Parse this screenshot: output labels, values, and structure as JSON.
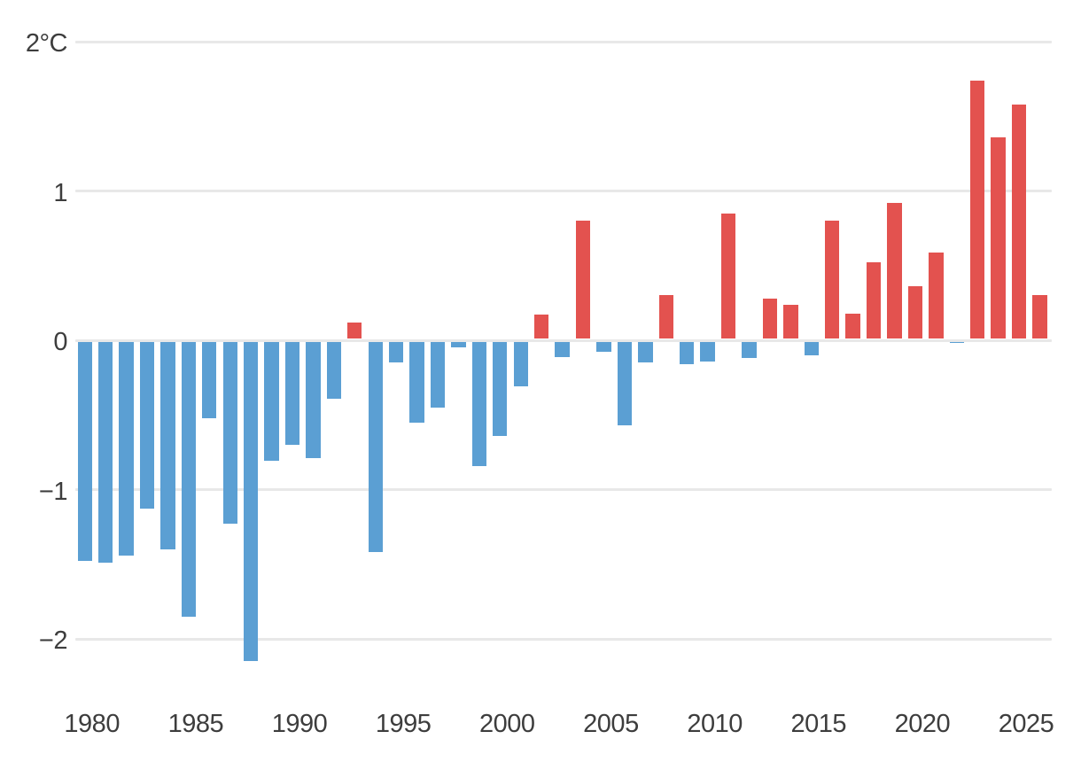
{
  "chart_data": {
    "type": "bar",
    "title": "",
    "xlabel": "",
    "ylabel": "",
    "unit": "°C",
    "grid": "horizontal",
    "legend": "none",
    "background_color": "#ffffff",
    "positive_color": "#e3524f",
    "negative_color": "#5b9fd3",
    "gridline_color": "#e8e8e8",
    "axis_text_color": "#3d3d3d",
    "x": [
      1980,
      1981,
      1982,
      1983,
      1984,
      1985,
      1986,
      1987,
      1988,
      1989,
      1990,
      1991,
      1992,
      1993,
      1994,
      1995,
      1996,
      1997,
      1998,
      1999,
      2000,
      2001,
      2002,
      2003,
      2004,
      2005,
      2006,
      2007,
      2008,
      2009,
      2010,
      2011,
      2012,
      2013,
      2014,
      2015,
      2016,
      2017,
      2018,
      2019,
      2020,
      2021,
      2022,
      2023,
      2024,
      2025,
      2026
    ],
    "values": [
      -1.48,
      -1.49,
      -1.44,
      -1.13,
      -1.4,
      -1.85,
      -0.52,
      -1.23,
      -2.15,
      -0.81,
      -0.7,
      -0.79,
      -0.39,
      0.12,
      -1.42,
      -0.15,
      -0.55,
      -0.45,
      -0.05,
      -0.84,
      -0.64,
      -0.31,
      0.17,
      -0.11,
      0.8,
      -0.08,
      -0.57,
      -0.15,
      0.3,
      -0.16,
      -0.14,
      0.85,
      -0.12,
      0.28,
      0.24,
      -0.1,
      0.8,
      0.18,
      0.52,
      0.92,
      0.36,
      0.59,
      -0.02,
      1.74,
      1.36,
      1.58,
      0.3
    ],
    "y_ticks": [
      {
        "label": "2°C",
        "value": 2
      },
      {
        "label": "1",
        "value": 1
      },
      {
        "label": "0",
        "value": 0
      },
      {
        "label": "−1",
        "value": -1
      },
      {
        "label": "−2",
        "value": -2
      }
    ],
    "x_ticks": [
      1980,
      1985,
      1990,
      1995,
      2000,
      2005,
      2010,
      2015,
      2020,
      2025
    ],
    "ylim": [
      -2.3,
      2.1
    ],
    "xlim": [
      1979,
      2027
    ]
  }
}
